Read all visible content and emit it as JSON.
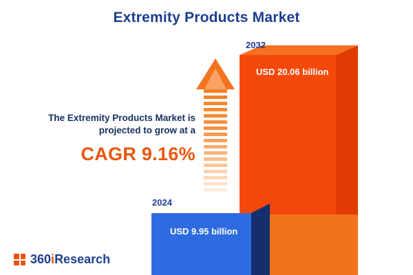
{
  "title": "Extremity Products Market",
  "annotation": {
    "line1": "The Extremity Products Market is",
    "line2": "projected to grow at a",
    "cagr_label": "CAGR 9.16%"
  },
  "chart_data": {
    "type": "bar",
    "title": "Extremity Products Market",
    "categories": [
      "2024",
      "2032"
    ],
    "values": [
      9.95,
      20.06
    ],
    "unit": "USD billion",
    "value_labels": [
      "USD 9.95 billion",
      "USD 20.06 billion"
    ],
    "growth": {
      "metric": "CAGR",
      "percent": 9.16
    },
    "bar_colors": {
      "2024": "#2e6be0",
      "2032": "#f4490b"
    },
    "legend": "none",
    "grid": false
  },
  "logo": {
    "prefix": "360",
    "accent": "i",
    "suffix": "Research"
  }
}
